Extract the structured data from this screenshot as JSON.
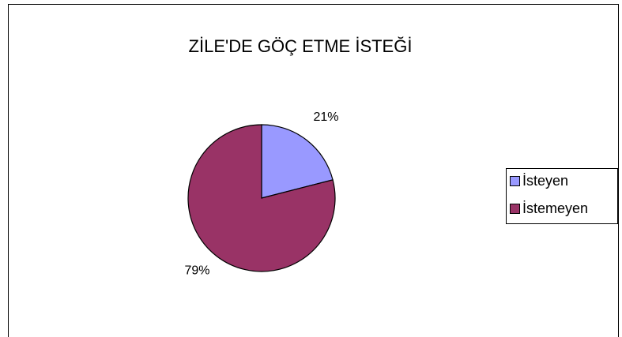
{
  "chart_data": {
    "type": "pie",
    "title": "ZİLE'DE GÖÇ ETME İSTEĞİ",
    "categories": [
      "İsteyen",
      "İstemeyen"
    ],
    "values": [
      21,
      79
    ],
    "value_labels": [
      "21%",
      "79%"
    ],
    "colors": [
      "#9999ff",
      "#993366"
    ],
    "legend": "right"
  }
}
